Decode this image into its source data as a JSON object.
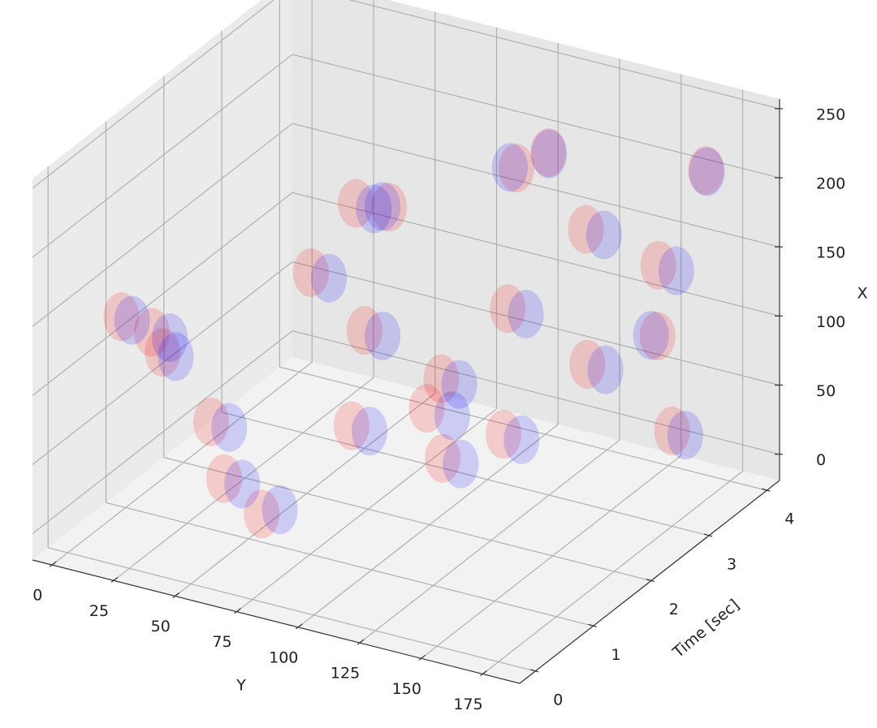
{
  "chart_data": {
    "type": "scatter3d",
    "xlabel": "Y",
    "ylabel": "Time [sec]",
    "zlabel": "X",
    "xlim": [
      -8,
      190
    ],
    "xticks": [
      0,
      25,
      50,
      75,
      100,
      125,
      150,
      175
    ],
    "ylim": [
      -0.27,
      4.22
    ],
    "yticks": [
      0,
      1,
      2,
      3,
      4
    ],
    "zlim": [
      -19,
      257
    ],
    "zticks": [
      0,
      50,
      100,
      150,
      200,
      250
    ],
    "grid": true,
    "series": [
      {
        "color": "#ff0000",
        "x": [
          10,
          20,
          15,
          30,
          40,
          60,
          80,
          90,
          70,
          100,
          110,
          120,
          130,
          140,
          150,
          160,
          170,
          175,
          100,
          60,
          40,
          120,
          80,
          155
        ],
        "y": [
          0.5,
          0.6,
          1.0,
          1.2,
          1.0,
          0.8,
          1.5,
          1.3,
          2.0,
          2.2,
          1.8,
          2.5,
          2.0,
          3.0,
          2.6,
          3.4,
          3.8,
          3.0,
          3.5,
          3.0,
          2.5,
          3.2,
          2.8,
          3.6
        ],
        "z": [
          140,
          130,
          100,
          50,
          20,
          10,
          60,
          140,
          200,
          80,
          40,
          130,
          60,
          180,
          100,
          150,
          210,
          50,
          190,
          160,
          120,
          220,
          30,
          90
        ]
      },
      {
        "color": "#0000ff",
        "x": [
          12,
          25,
          18,
          35,
          45,
          65,
          85,
          95,
          75,
          105,
          115,
          125,
          135,
          145,
          155,
          165,
          168,
          178,
          95,
          55,
          45,
          118,
          88,
          150
        ],
        "y": [
          0.6,
          0.7,
          1.1,
          1.3,
          1.1,
          0.9,
          1.6,
          1.4,
          2.1,
          2.3,
          1.9,
          2.6,
          2.1,
          3.1,
          2.7,
          3.5,
          3.9,
          3.1,
          3.6,
          3.1,
          2.6,
          3.3,
          2.9,
          3.7
        ],
        "z": [
          135,
          125,
          95,
          45,
          15,
          12,
          55,
          135,
          195,
          75,
          35,
          125,
          55,
          175,
          95,
          145,
          205,
          45,
          185,
          155,
          115,
          215,
          25,
          85
        ]
      }
    ]
  }
}
